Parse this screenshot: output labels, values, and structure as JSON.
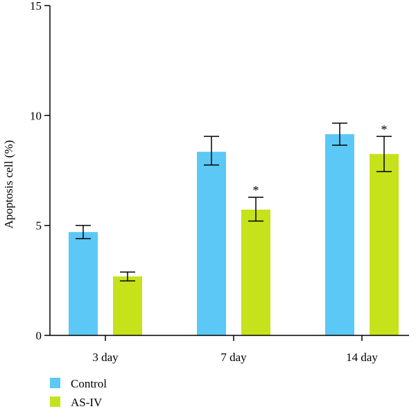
{
  "chart_data": {
    "type": "bar",
    "categories": [
      "3 day",
      "7 day",
      "14 day"
    ],
    "ylabel": "Apoptosis cell (%)",
    "ylim": [
      0,
      15
    ],
    "yticks": [
      0,
      5,
      10,
      15
    ],
    "grid": false,
    "legend_position": "bottom-left",
    "series": [
      {
        "name": "Control",
        "color": "#5BC8F5",
        "values": [
          4.7,
          8.35,
          9.15
        ],
        "err_low": [
          4.4,
          7.75,
          8.65
        ],
        "err_high": [
          5.0,
          9.05,
          9.65
        ],
        "significance": [
          "",
          "",
          ""
        ]
      },
      {
        "name": "AS-IV",
        "color": "#C5E21B",
        "values": [
          2.68,
          5.72,
          8.25
        ],
        "err_low": [
          2.48,
          5.2,
          7.45
        ],
        "err_high": [
          2.88,
          6.28,
          9.05
        ],
        "significance": [
          "",
          "*",
          "*"
        ]
      }
    ]
  }
}
